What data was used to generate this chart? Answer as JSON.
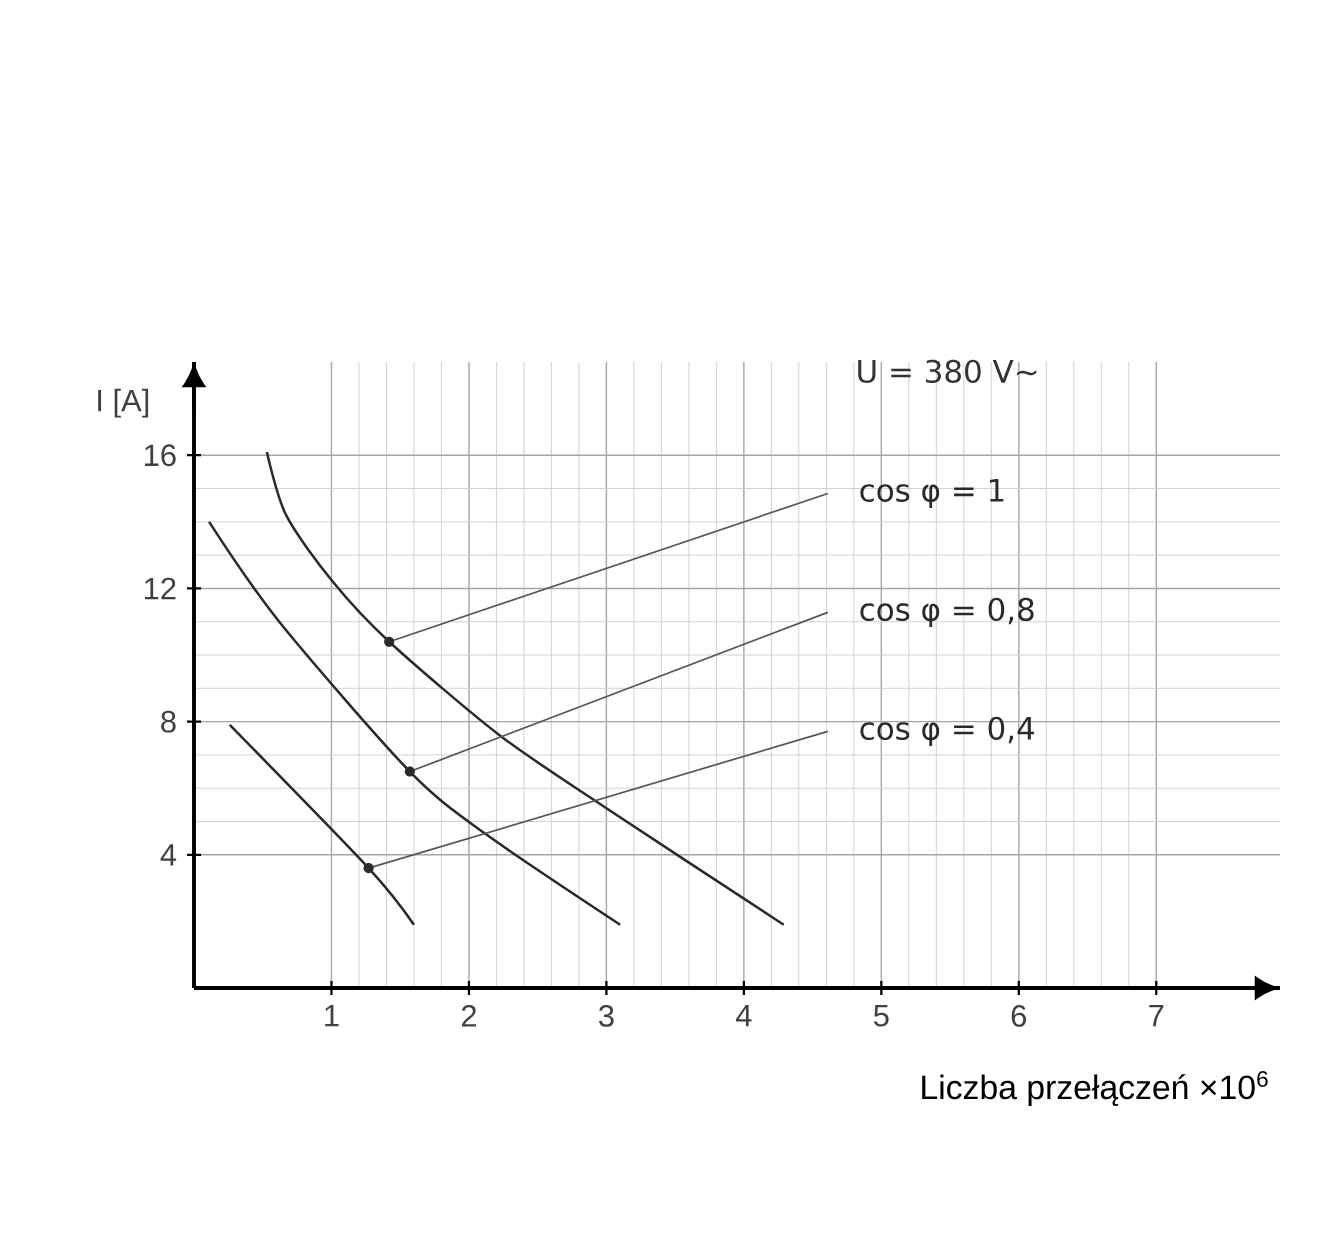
{
  "chart_data": {
    "type": "line",
    "xlabel": "Liczba przełączeń ×10$^{6}$",
    "ylabel": "I [A]",
    "annotations": [
      "U = 380 V∼"
    ],
    "xlim": [
      0,
      7.9
    ],
    "ylim": [
      0,
      18.8
    ],
    "xticks": [
      1,
      2,
      3,
      4,
      5,
      6,
      7
    ],
    "yticks": [
      4,
      8,
      12,
      16
    ],
    "grid": true,
    "legend": false,
    "marker": "none",
    "line_style": "solid",
    "series": [
      {
        "name": "cos φ = 1",
        "color": "#2a2a2a",
        "x": [
          0.53,
          0.67,
          1.01,
          1.42,
          2.22,
          3.0,
          4.29
        ],
        "values": [
          16.1,
          14.2,
          12.2,
          10.4,
          7.6,
          5.4,
          1.9
        ]
      },
      {
        "name": "cos φ = 0,8",
        "color": "#2a2a2a",
        "x": [
          0.11,
          0.62,
          1.57,
          2.13,
          3.1
        ],
        "values": [
          14.0,
          11.0,
          6.5,
          4.6,
          1.9
        ]
      },
      {
        "name": "cos φ = 0,4",
        "color": "#2a2a2a",
        "x": [
          0.26,
          1.27,
          1.6
        ],
        "values": [
          7.9,
          3.6,
          1.9
        ]
      }
    ]
  }
}
